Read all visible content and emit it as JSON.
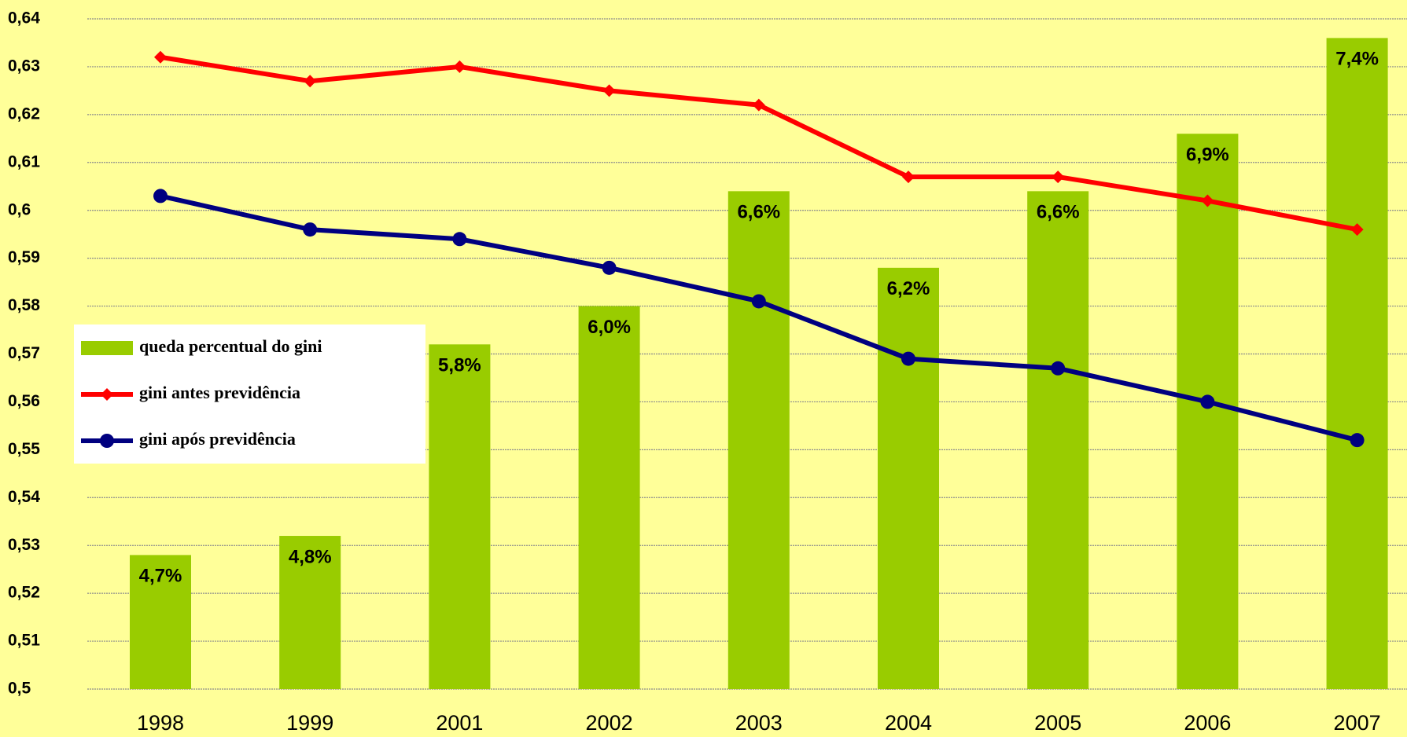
{
  "chart_data": {
    "type": "combo",
    "categories": [
      "1998",
      "1999",
      "2001",
      "2002",
      "2003",
      "2004",
      "2005",
      "2006",
      "2007"
    ],
    "series": [
      {
        "name": "queda percentual do gini",
        "type": "bar",
        "axis": "y2",
        "color": "#99cc00",
        "values": [
          4.7,
          4.8,
          5.8,
          6.0,
          6.6,
          6.2,
          6.6,
          6.9,
          7.4
        ],
        "value_labels": [
          "4,7%",
          "4,8%",
          "5,8%",
          "6,0%",
          "6,6%",
          "6,2%",
          "6,6%",
          "6,9%",
          "7,4%"
        ]
      },
      {
        "name": "gini antes previdência",
        "type": "line",
        "marker": "diamond",
        "color": "#ff0000",
        "values": [
          0.632,
          0.627,
          0.63,
          0.625,
          0.622,
          0.607,
          0.607,
          0.602,
          0.596
        ]
      },
      {
        "name": "gini após previdência",
        "type": "line",
        "marker": "circle",
        "color": "#000080",
        "values": [
          0.603,
          0.596,
          0.594,
          0.588,
          0.581,
          0.569,
          0.567,
          0.56,
          0.552
        ]
      }
    ],
    "ylim": [
      0.5,
      0.64
    ],
    "yticks": [
      {
        "value": 0.5,
        "label": "0,5"
      },
      {
        "value": 0.51,
        "label": "0,51"
      },
      {
        "value": 0.52,
        "label": "0,52"
      },
      {
        "value": 0.53,
        "label": "0,53"
      },
      {
        "value": 0.54,
        "label": "0,54"
      },
      {
        "value": 0.55,
        "label": "0,55"
      },
      {
        "value": 0.56,
        "label": "0,56"
      },
      {
        "value": 0.57,
        "label": "0,57"
      },
      {
        "value": 0.58,
        "label": "0,58"
      },
      {
        "value": 0.59,
        "label": "0,59"
      },
      {
        "value": 0.6,
        "label": "0,6"
      },
      {
        "value": 0.61,
        "label": "0,61"
      },
      {
        "value": 0.62,
        "label": "0,62"
      },
      {
        "value": 0.63,
        "label": "0,63"
      },
      {
        "value": 0.64,
        "label": "0,64"
      }
    ],
    "y2lim": [
      4,
      7.5
    ],
    "grid": true,
    "legend": "left"
  }
}
